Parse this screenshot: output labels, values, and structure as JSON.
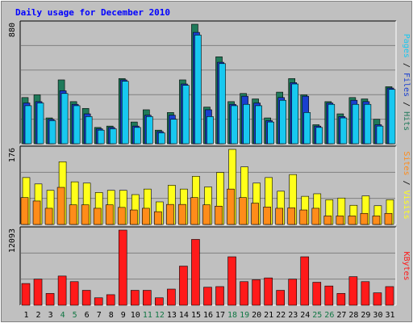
{
  "title": "Daily usage for December 2010",
  "colors": {
    "hits": "#1f7a5a",
    "files": "#1a3fcf",
    "pages": "#18c8f0",
    "visits": "#ffff1a",
    "sites": "#ff8c1a",
    "kbytes": "#ff1a1a",
    "weekend_label": "#117744",
    "weekday_label": "#000000",
    "background": "#c0c0c0"
  },
  "chart_data": [
    {
      "type": "bar",
      "name": "hits_files_pages",
      "ymax_label": "880",
      "ylim": [
        0,
        880
      ],
      "right_labels": [
        "Hits",
        "Files",
        "Pages"
      ],
      "x": [
        1,
        2,
        3,
        4,
        5,
        6,
        7,
        8,
        9,
        10,
        11,
        12,
        13,
        14,
        15,
        16,
        17,
        18,
        19,
        20,
        21,
        22,
        23,
        24,
        25,
        26,
        27,
        28,
        29,
        30,
        31
      ],
      "series": [
        {
          "name": "Hits",
          "values": [
            340,
            360,
            190,
            470,
            310,
            260,
            120,
            130,
            480,
            160,
            250,
            100,
            230,
            470,
            880,
            270,
            640,
            310,
            370,
            330,
            190,
            380,
            480,
            360,
            140,
            310,
            220,
            340,
            330,
            180,
            420
          ]
        },
        {
          "name": "Files",
          "values": [
            300,
            310,
            180,
            390,
            290,
            220,
            110,
            120,
            470,
            130,
            210,
            90,
            210,
            440,
            820,
            250,
            600,
            290,
            350,
            300,
            170,
            340,
            450,
            350,
            130,
            300,
            200,
            320,
            310,
            140,
            410
          ]
        },
        {
          "name": "Pages",
          "values": [
            280,
            300,
            170,
            370,
            280,
            200,
            100,
            110,
            460,
            120,
            200,
            80,
            180,
            430,
            800,
            200,
            590,
            280,
            290,
            280,
            160,
            320,
            440,
            230,
            120,
            290,
            190,
            290,
            290,
            130,
            400
          ]
        }
      ]
    },
    {
      "type": "bar",
      "name": "visits_sites",
      "ymax_label": "176",
      "ylim": [
        0,
        176
      ],
      "right_labels": [
        "Visits",
        "Sites"
      ],
      "x": [
        1,
        2,
        3,
        4,
        5,
        6,
        7,
        8,
        9,
        10,
        11,
        12,
        13,
        14,
        15,
        16,
        17,
        18,
        19,
        20,
        21,
        22,
        23,
        24,
        25,
        26,
        27,
        28,
        29,
        30,
        31
      ],
      "series": [
        {
          "name": "Visits",
          "values": [
            110,
            95,
            80,
            147,
            100,
            97,
            75,
            80,
            80,
            70,
            83,
            53,
            92,
            83,
            113,
            88,
            122,
            176,
            135,
            97,
            110,
            78,
            117,
            66,
            72,
            58,
            62,
            45,
            67,
            44,
            58
          ]
        },
        {
          "name": "Sites",
          "values": [
            63,
            55,
            38,
            87,
            46,
            46,
            38,
            46,
            40,
            34,
            38,
            30,
            47,
            47,
            63,
            46,
            43,
            83,
            63,
            50,
            41,
            38,
            39,
            34,
            38,
            20,
            20,
            20,
            26,
            20,
            26
          ]
        }
      ]
    },
    {
      "type": "bar",
      "name": "kbytes",
      "ymax_label": "12093",
      "ylim": [
        0,
        12093
      ],
      "right_labels": [
        "KBytes"
      ],
      "x": [
        1,
        2,
        3,
        4,
        5,
        6,
        7,
        8,
        9,
        10,
        11,
        12,
        13,
        14,
        15,
        16,
        17,
        18,
        19,
        20,
        21,
        22,
        23,
        24,
        25,
        26,
        27,
        28,
        29,
        30,
        31
      ],
      "series": [
        {
          "name": "KBytes",
          "values": [
            3500,
            4200,
            1900,
            4700,
            3800,
            2400,
            1200,
            1700,
            12093,
            2400,
            2400,
            1200,
            2600,
            6300,
            10600,
            2900,
            3000,
            7800,
            3800,
            4100,
            4400,
            2400,
            4200,
            7800,
            3700,
            3100,
            1900,
            4600,
            3800,
            2000,
            3000
          ]
        }
      ]
    }
  ],
  "x_labels": [
    "1",
    "2",
    "3",
    "4",
    "5",
    "6",
    "7",
    "8",
    "9",
    "10",
    "11",
    "12",
    "13",
    "14",
    "15",
    "16",
    "17",
    "18",
    "19",
    "20",
    "21",
    "22",
    "23",
    "24",
    "25",
    "26",
    "27",
    "28",
    "29",
    "30",
    "31"
  ],
  "weekend_days": [
    4,
    5,
    11,
    12,
    18,
    19,
    25,
    26
  ]
}
